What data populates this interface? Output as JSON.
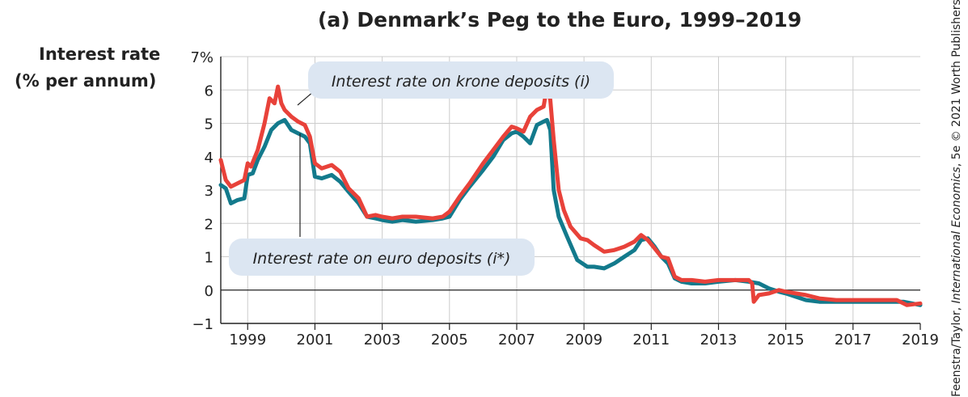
{
  "chart_data": {
    "type": "line",
    "title": "(a) Denmark’s Peg to the Euro, 1999–2019",
    "ylabel_lines": [
      "Interest rate",
      "(% per annum)"
    ],
    "xlabel": "",
    "xlim": [
      1998.2,
      2019
    ],
    "ylim": [
      -1,
      7
    ],
    "x_ticks": [
      "1999",
      "2001",
      "2003",
      "2005",
      "2007",
      "2009",
      "2011",
      "2013",
      "2015",
      "2017",
      "2019"
    ],
    "y_ticks": [
      "−1",
      "0",
      "1",
      "2",
      "3",
      "4",
      "5",
      "6",
      "7%"
    ],
    "grid": true,
    "annotations": {
      "krone": "Interest rate on krone deposits (i)",
      "euro": "Interest rate on euro deposits (i*)"
    },
    "colors": {
      "krone": "#e8423a",
      "euro": "#137a8c",
      "grid": "#cccccc",
      "callout": "#dce6f2"
    },
    "series": [
      {
        "name": "Interest rate on krone deposits (i)",
        "x": [
          1998.2,
          1998.35,
          1998.5,
          1998.7,
          1998.9,
          1999.0,
          1999.1,
          1999.3,
          1999.5,
          1999.65,
          1999.8,
          1999.9,
          2000.0,
          2000.1,
          2000.3,
          2000.5,
          2000.7,
          2000.85,
          2001.0,
          2001.2,
          2001.5,
          2001.75,
          2002.0,
          2002.3,
          2002.55,
          2002.8,
          2003.0,
          2003.3,
          2003.6,
          2004.0,
          2004.5,
          2004.8,
          2005.0,
          2005.3,
          2005.6,
          2006.0,
          2006.3,
          2006.6,
          2006.85,
          2007.0,
          2007.2,
          2007.4,
          2007.6,
          2007.8,
          2007.9,
          2008.0,
          2008.1,
          2008.25,
          2008.4,
          2008.6,
          2008.9,
          2009.1,
          2009.3,
          2009.6,
          2009.9,
          2010.2,
          2010.5,
          2010.7,
          2010.9,
          2011.1,
          2011.3,
          2011.5,
          2011.7,
          2011.9,
          2012.2,
          2012.6,
          2013.0,
          2013.5,
          2013.9,
          2014.0,
          2014.05,
          2014.2,
          2014.5,
          2014.8,
          2015.0,
          2015.3,
          2015.6,
          2016.0,
          2016.5,
          2017.0,
          2017.5,
          2018.0,
          2018.3,
          2018.6,
          2019.0
        ],
        "values": [
          3.9,
          3.3,
          3.1,
          3.2,
          3.3,
          3.8,
          3.7,
          4.2,
          5.0,
          5.75,
          5.6,
          6.1,
          5.6,
          5.4,
          5.2,
          5.05,
          4.95,
          4.6,
          3.8,
          3.65,
          3.75,
          3.55,
          3.05,
          2.75,
          2.2,
          2.25,
          2.2,
          2.15,
          2.2,
          2.2,
          2.15,
          2.2,
          2.35,
          2.8,
          3.2,
          3.8,
          4.2,
          4.6,
          4.9,
          4.85,
          4.75,
          5.2,
          5.4,
          5.5,
          6.1,
          5.7,
          4.5,
          3.0,
          2.4,
          1.9,
          1.55,
          1.5,
          1.35,
          1.15,
          1.2,
          1.3,
          1.45,
          1.65,
          1.5,
          1.25,
          1.0,
          0.95,
          0.4,
          0.3,
          0.3,
          0.25,
          0.3,
          0.3,
          0.3,
          0.2,
          -0.35,
          -0.15,
          -0.1,
          0.0,
          -0.05,
          -0.1,
          -0.15,
          -0.25,
          -0.3,
          -0.3,
          -0.3,
          -0.3,
          -0.3,
          -0.45,
          -0.4
        ]
      },
      {
        "name": "Interest rate on euro deposits (i*)",
        "x": [
          1998.2,
          1998.35,
          1998.5,
          1998.7,
          1998.9,
          1999.0,
          1999.15,
          1999.3,
          1999.5,
          1999.7,
          1999.9,
          2000.1,
          2000.3,
          2000.5,
          2000.7,
          2000.85,
          2001.0,
          2001.2,
          2001.5,
          2001.75,
          2002.0,
          2002.3,
          2002.55,
          2002.8,
          2003.0,
          2003.3,
          2003.6,
          2004.0,
          2004.5,
          2004.8,
          2005.0,
          2005.3,
          2005.6,
          2006.0,
          2006.3,
          2006.6,
          2006.85,
          2007.0,
          2007.2,
          2007.4,
          2007.6,
          2007.8,
          2007.9,
          2008.0,
          2008.1,
          2008.25,
          2008.5,
          2008.8,
          2009.1,
          2009.3,
          2009.6,
          2009.9,
          2010.2,
          2010.5,
          2010.7,
          2010.9,
          2011.1,
          2011.3,
          2011.5,
          2011.7,
          2011.9,
          2012.2,
          2012.6,
          2013.0,
          2013.5,
          2013.9,
          2014.2,
          2014.5,
          2014.8,
          2015.0,
          2015.3,
          2015.6,
          2016.0,
          2016.5,
          2017.0,
          2017.5,
          2018.0,
          2018.5,
          2019.0
        ],
        "values": [
          3.15,
          3.05,
          2.6,
          2.7,
          2.75,
          3.45,
          3.5,
          3.9,
          4.3,
          4.8,
          5.0,
          5.1,
          4.8,
          4.7,
          4.6,
          4.4,
          3.4,
          3.35,
          3.45,
          3.25,
          2.95,
          2.6,
          2.2,
          2.15,
          2.1,
          2.05,
          2.1,
          2.05,
          2.1,
          2.15,
          2.2,
          2.7,
          3.1,
          3.6,
          4.0,
          4.5,
          4.7,
          4.75,
          4.6,
          4.4,
          4.95,
          5.05,
          5.1,
          4.8,
          3.0,
          2.2,
          1.6,
          0.9,
          0.7,
          0.7,
          0.65,
          0.8,
          1.0,
          1.2,
          1.5,
          1.55,
          1.3,
          1.0,
          0.8,
          0.35,
          0.25,
          0.2,
          0.2,
          0.25,
          0.3,
          0.25,
          0.2,
          0.05,
          -0.05,
          -0.1,
          -0.2,
          -0.3,
          -0.35,
          -0.35,
          -0.35,
          -0.35,
          -0.35,
          -0.35,
          -0.45
        ]
      }
    ]
  },
  "credit": {
    "prefix": "Feenstra/Taylor, ",
    "book": "International Economics",
    "suffix": ", 5e © 2021 Worth Publishers"
  }
}
